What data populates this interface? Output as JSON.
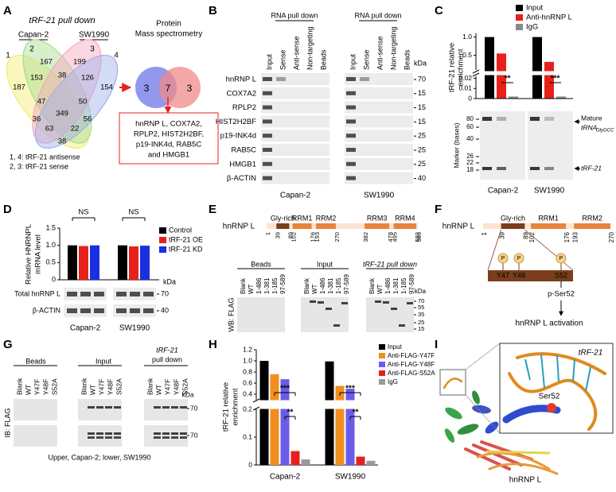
{
  "panels": {
    "A": {
      "label": "A",
      "title": "tRF-21 pull down",
      "lines": [
        "Capan-2",
        "SW1990"
      ],
      "set_ids": [
        1,
        2,
        3,
        4
      ],
      "regions": [
        167,
        199,
        187,
        153,
        38,
        126,
        154,
        47,
        50,
        36,
        349,
        56,
        63,
        22,
        38
      ],
      "ms_title": [
        "Protein",
        "Mass spectrometry"
      ],
      "ms_regions": [
        3,
        7,
        3
      ],
      "box": [
        "hnRNP L, COX7A2,",
        "RPLP2, HIST2H2BF,",
        "p19-INK4d, RAB5C",
        "and HMGB1"
      ],
      "legend": [
        "1, 4: tRF-21 antisense",
        "2, 3: tRF-21 sense"
      ]
    },
    "B": {
      "label": "B",
      "group_title": "RNA pull down",
      "lanes": [
        "Input",
        "Sense",
        "Anti-sense",
        "Non-targeting",
        "Beads"
      ],
      "unit": "kDa",
      "rows": [
        {
          "name": "hnRNP L",
          "kda": 70
        },
        {
          "name": "COX7A2",
          "kda": 15
        },
        {
          "name": "RPLP2",
          "kda": 15
        },
        {
          "name": "HIST2H2BF",
          "kda": 15
        },
        {
          "name": "p19-INK4d",
          "kda": 25
        },
        {
          "name": "RAB5C",
          "kda": 25
        },
        {
          "name": "HMGB1",
          "kda": 25
        },
        {
          "name": "β-ACTIN",
          "kda": 40
        }
      ],
      "groups": [
        "Capan-2",
        "SW1990"
      ]
    },
    "C": {
      "label": "C",
      "legend": [
        {
          "name": "Input",
          "color": "#000000"
        },
        {
          "name": "Anti-hnRNP L",
          "color": "#e8201c"
        },
        {
          "name": "IgG",
          "color": "#8a8a8a"
        }
      ],
      "ylabel": [
        "tRF-21 relative",
        "enrichment"
      ],
      "groups": [
        "Capan-2",
        "SW1990"
      ],
      "values": [
        [
          1.0,
          0.55,
          0.002
        ],
        [
          1.0,
          0.32,
          0.002
        ]
      ],
      "ylim_lower": [
        0,
        0.022
      ],
      "yticks_lower": [
        0,
        0.01,
        0.02
      ],
      "ylim_upper": [
        0.1,
        1.1
      ],
      "yticks_upper": [
        0.5,
        {
          "value": 1,
          "label": "1.0"
        }
      ],
      "significance": [
        "**",
        "***"
      ],
      "marker_label": "Marker (bases)",
      "marker_ticks": [
        80,
        60,
        40,
        26,
        22,
        18
      ],
      "bands": [
        "Mature",
        "tRNA",
        "GlyGCC",
        "tRF-21"
      ]
    },
    "D": {
      "label": "D",
      "ns": "NS",
      "legend": [
        {
          "name": "Control",
          "color": "#000000"
        },
        {
          "name": "tRF-21 OE",
          "color": "#e8201c"
        },
        {
          "name": "tRF-21 KD",
          "color": "#1a2fe0"
        }
      ],
      "ylabel": [
        "Relative HNRNPL",
        "mRNA level"
      ],
      "ylim": [
        0,
        1.5
      ],
      "yticks": [
        0,
        0.5,
        {
          "value": 1,
          "label": "1.0"
        },
        1.5
      ],
      "values": [
        [
          1.0,
          0.98,
          1.0
        ],
        [
          1.0,
          0.97,
          0.99
        ]
      ],
      "blots": [
        {
          "name": "Total hnRNP L",
          "kda": 70
        },
        {
          "name": "β-ACTIN",
          "kda": 40
        }
      ],
      "unit": "kDa",
      "groups": [
        "Capan-2",
        "SW1990"
      ]
    },
    "E": {
      "label": "E",
      "protein": "hnRNP L",
      "start": 1,
      "length": 589,
      "domains": [
        {
          "name": "Gly-rich",
          "start": 39,
          "end": 89
        },
        {
          "name": "RRM1",
          "start": 102,
          "end": 176
        },
        {
          "name": "RRM2",
          "start": 193,
          "end": 270
        },
        {
          "name": "RRM3",
          "start": 382,
          "end": 478
        },
        {
          "name": "RRM4",
          "start": 495,
          "end": 583
        }
      ],
      "sections": [
        "Beads",
        "Input",
        "tRF-21 pull down"
      ],
      "lanes": [
        "Blank",
        "WT",
        "1-486",
        "1-381",
        "1-185",
        "97-589"
      ],
      "wb": "WB: FLAG",
      "unit": "kDa",
      "kda_ticks": [
        70,
        55,
        35,
        25,
        15
      ]
    },
    "F": {
      "label": "F",
      "protein": "hnRNP L",
      "start": 1,
      "domains": [
        {
          "name": "Gly-rich",
          "start": 39,
          "end": 89
        },
        {
          "name": "RRM1",
          "start": 102,
          "end": 176
        },
        {
          "name": "RRM2",
          "start": 193,
          "end": 270
        }
      ],
      "phospho": "P",
      "sites": [
        "Y47",
        "Y48",
        "S52"
      ],
      "modification": "p-Ser52",
      "outcome": "hnRNP L activation"
    },
    "G": {
      "label": "G",
      "sections": [
        "Beads",
        "Input"
      ],
      "pulldown": [
        "tRF-21",
        "pull down"
      ],
      "lanes": [
        "Blank",
        "WT",
        "Y47F",
        "Y48F",
        "S52A"
      ],
      "ib": "IB: FLAG",
      "unit": "kDa",
      "kda": 70,
      "caption": "Upper, Capan-2; lower, SW1990"
    },
    "H": {
      "label": "H",
      "legend": [
        {
          "name": "Input",
          "color": "#000000"
        },
        {
          "name": "Anti-FLAG-Y47F",
          "color": "#f28e1e"
        },
        {
          "name": "Anti-FLAG-Y48F",
          "color": "#6b5ce8"
        },
        {
          "name": "Anti-FLAG-S52A",
          "color": "#e8201c"
        },
        {
          "name": "IgG",
          "color": "#9a9a9a"
        }
      ],
      "ylabel": [
        "tRF-21 relative",
        "enrichment"
      ],
      "groups": [
        "Capan-2",
        "SW1990"
      ],
      "values": [
        [
          1.0,
          0.76,
          0.67,
          0.05,
          0.02
        ],
        [
          0.99,
          0.55,
          0.5,
          0.03,
          0.015
        ]
      ],
      "ylim_lower": [
        0,
        0.2
      ],
      "yticks_lower": [
        0,
        0.1,
        0.2
      ],
      "ylim_upper": [
        0.3,
        1.2
      ],
      "yticks_upper": [
        0.4,
        0.6,
        0.8,
        {
          "value": 1,
          "label": "1.0"
        },
        1.2
      ],
      "significance": [
        "***",
        "**"
      ]
    },
    "I": {
      "label": "I",
      "rna": "tRF-21",
      "residue": "Ser52",
      "protein": "hnRNP L"
    }
  }
}
